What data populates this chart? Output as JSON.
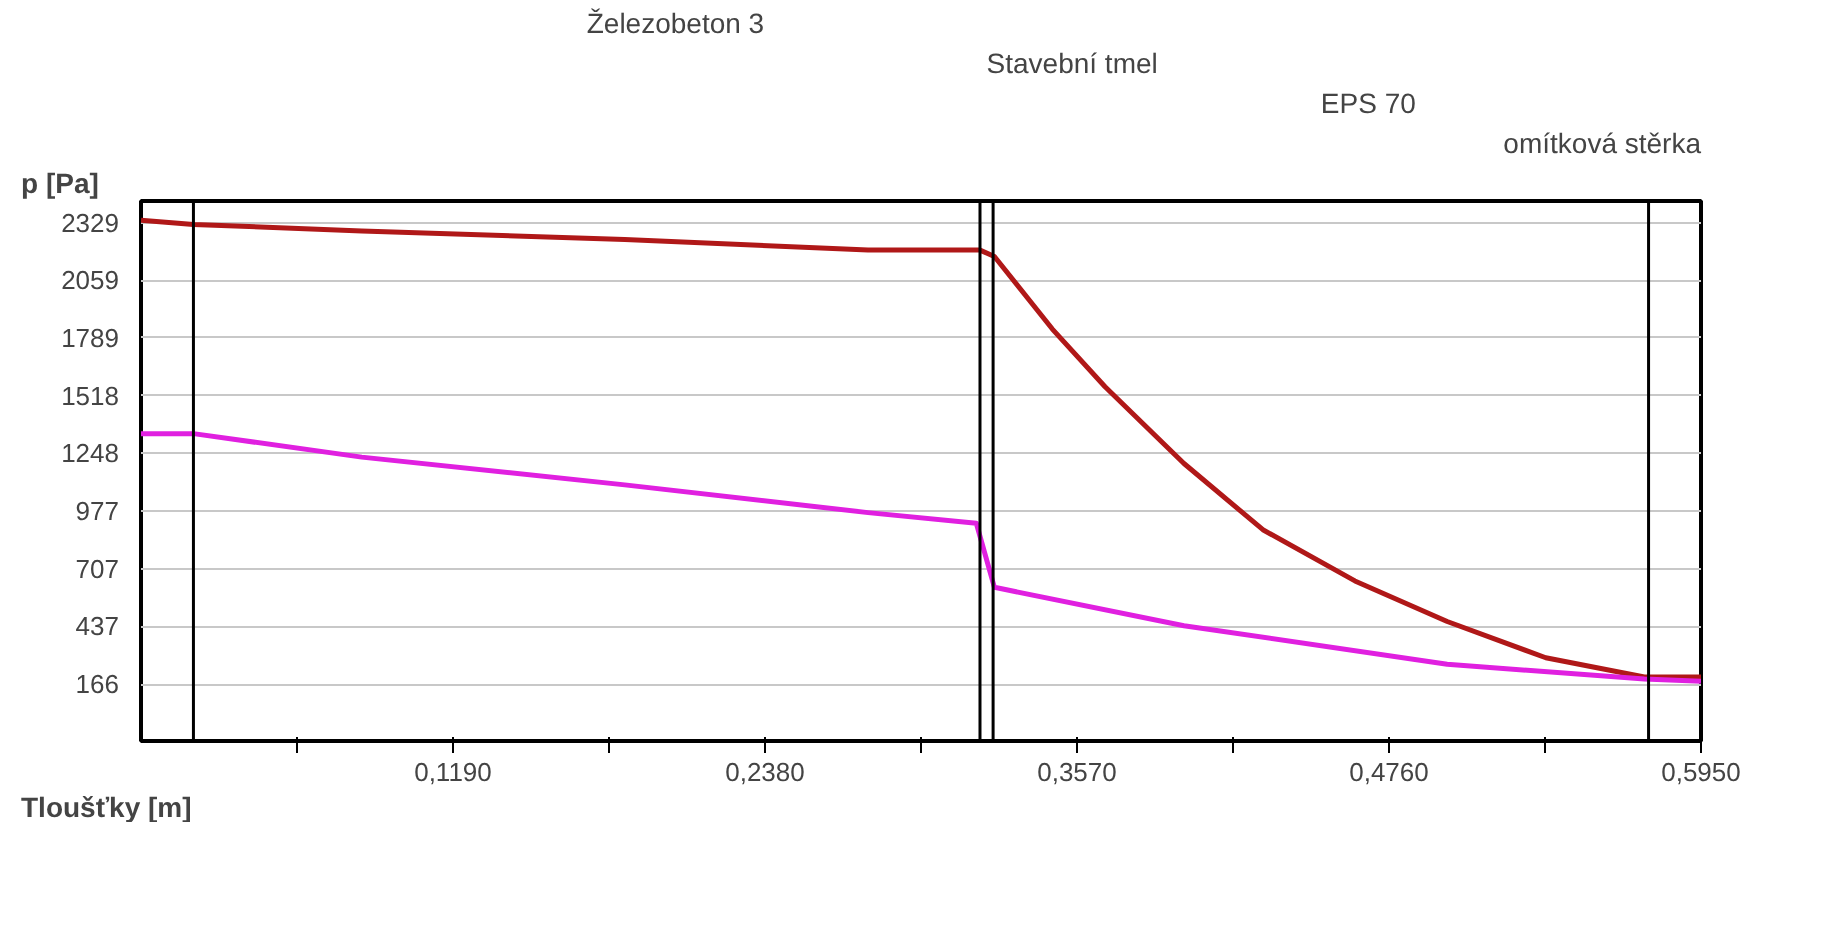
{
  "chart_data": {
    "type": "line",
    "xlabel": "Tloušťky [m]",
    "ylabel": "p [Pa]",
    "xlim": [
      0,
      0.595
    ],
    "ylim": [
      -100,
      2430
    ],
    "xticks": [
      {
        "value": 0.0595,
        "label": null
      },
      {
        "value": 0.119,
        "label": "0,1190"
      },
      {
        "value": 0.1785,
        "label": null
      },
      {
        "value": 0.238,
        "label": "0,2380"
      },
      {
        "value": 0.2975,
        "label": null
      },
      {
        "value": 0.357,
        "label": "0,3570"
      },
      {
        "value": 0.4165,
        "label": null
      },
      {
        "value": 0.476,
        "label": "0,4760"
      },
      {
        "value": 0.5355,
        "label": null
      },
      {
        "value": 0.595,
        "label": "0,5950"
      }
    ],
    "yticks": [
      166,
      437,
      707,
      977,
      1248,
      1518,
      1789,
      2059,
      2329
    ],
    "grid": "y",
    "line_style": "solid",
    "marker": "none",
    "series": [
      {
        "color": "#b01818",
        "x": [
          0,
          0.02,
          0.0842,
          0.1845,
          0.2773,
          0.32,
          0.3255,
          0.3476,
          0.3677,
          0.3978,
          0.4279,
          0.463,
          0.4982,
          0.5358,
          0.5734,
          0.595
        ],
        "values": [
          2340,
          2320,
          2290,
          2250,
          2200,
          2200,
          2170,
          1830,
          1560,
          1200,
          890,
          650,
          460,
          290,
          200,
          200
        ]
      },
      {
        "color": "#e020e0",
        "x": [
          0,
          0.02,
          0.0842,
          0.1845,
          0.2773,
          0.3186,
          0.3255,
          0.3978,
          0.4982,
          0.5734,
          0.595
        ],
        "values": [
          1340,
          1340,
          1230,
          1100,
          970,
          920,
          620,
          440,
          260,
          190,
          180
        ]
      }
    ],
    "ref_lines": [
      {
        "axis": "x",
        "value": 0.02,
        "color": "#000000"
      },
      {
        "axis": "x",
        "value": 0.32,
        "color": "#000000"
      },
      {
        "axis": "x",
        "value": 0.325,
        "color": "#000000"
      },
      {
        "axis": "x",
        "value": 0.575,
        "color": "#000000"
      }
    ],
    "annotations": [
      "Železobeton 3",
      "Stavební tmel",
      "EPS 70",
      "omítková stěrka"
    ]
  }
}
